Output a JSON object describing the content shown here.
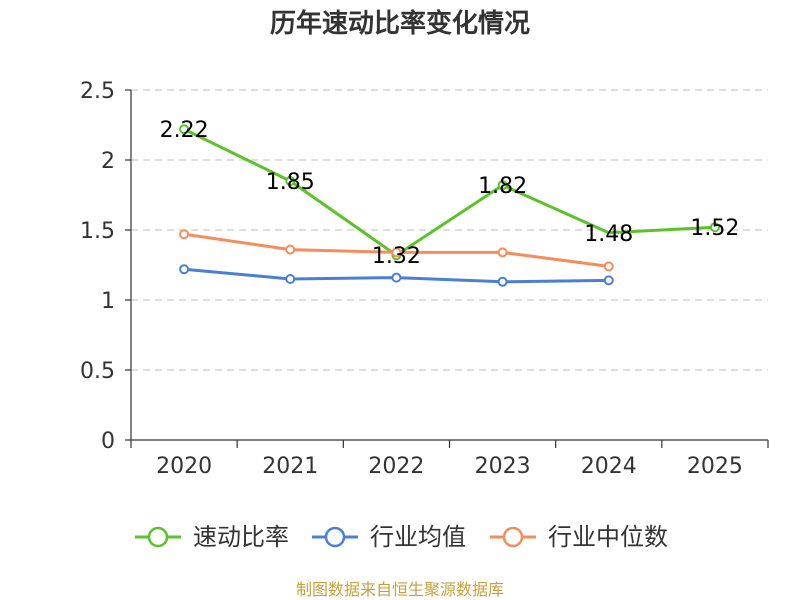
{
  "chart_data": {
    "type": "line",
    "title": "历年速动比率变化情况",
    "categories": [
      "2020",
      "2021",
      "2022",
      "2023",
      "2024",
      "2025"
    ],
    "ylim": [
      0,
      2.5
    ],
    "yticks": [
      "0",
      "0.5",
      "1",
      "1.5",
      "2",
      "2.5"
    ],
    "grid": true,
    "legend_position": "bottom",
    "series": [
      {
        "name": "速动比率",
        "color": "#5bc228",
        "values": [
          2.22,
          1.85,
          1.32,
          1.82,
          1.48,
          1.52
        ],
        "labels": [
          "2.22",
          "1.85",
          "1.32",
          "1.82",
          "1.48",
          "1.52"
        ],
        "show_markers": [
          true,
          true,
          true,
          true,
          false,
          true
        ]
      },
      {
        "name": "行业均值",
        "color": "#4a7fd8",
        "values": [
          1.22,
          1.15,
          1.16,
          1.13,
          1.14,
          null
        ]
      },
      {
        "name": "行业中位数",
        "color": "#f68c5a",
        "values": [
          1.47,
          1.36,
          1.34,
          1.34,
          1.24,
          null
        ]
      }
    ]
  },
  "source": "制图数据来自恒生聚源数据库"
}
